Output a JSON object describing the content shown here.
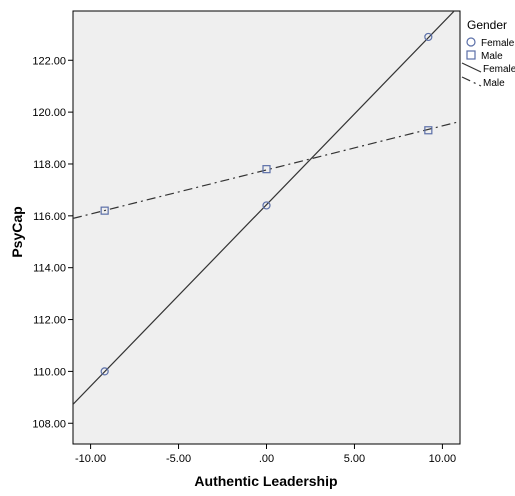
{
  "chart_data": {
    "type": "line",
    "xlabel": "Authentic Leadership",
    "ylabel": "PsyCap",
    "xlim": [
      -11.0,
      11.0
    ],
    "ylim": [
      107.2,
      123.9
    ],
    "x_ticks": [
      -10,
      -5,
      0,
      5,
      10
    ],
    "x_tick_labels": [
      "-10.00",
      "-5.00",
      ".00",
      "5.00",
      "10.00"
    ],
    "y_ticks": [
      108,
      110,
      112,
      114,
      116,
      118,
      120,
      122
    ],
    "y_tick_labels": [
      "108.00",
      "110.00",
      "112.00",
      "114.00",
      "116.00",
      "118.00",
      "120.00",
      "122.00"
    ],
    "grid": false,
    "legend": {
      "title": "Gender",
      "position": "right",
      "entries": [
        {
          "label": "Female",
          "kind": "marker",
          "marker": "circle"
        },
        {
          "label": "Male",
          "kind": "marker",
          "marker": "square"
        },
        {
          "label": "Female",
          "kind": "line",
          "style": "solid"
        },
        {
          "label": "Male",
          "kind": "line",
          "style": "dash-dot"
        }
      ]
    },
    "series": [
      {
        "name": "Female",
        "marker": "circle",
        "line_style": "solid",
        "points": [
          [
            -9.2,
            110.0
          ],
          [
            0.0,
            116.4
          ],
          [
            9.2,
            122.9
          ]
        ],
        "fit": {
          "intercept": 116.43,
          "slope": 0.7
        }
      },
      {
        "name": "Male",
        "marker": "square",
        "line_style": "dash-dot",
        "points": [
          [
            -9.2,
            116.2
          ],
          [
            0.0,
            117.8
          ],
          [
            9.2,
            119.3
          ]
        ],
        "fit": {
          "intercept": 117.77,
          "slope": 0.17
        }
      }
    ],
    "colors": {
      "plot_background": "#efefef",
      "marker_stroke": "#5b6fa8",
      "line": "#333333",
      "axis": "#000000"
    }
  }
}
